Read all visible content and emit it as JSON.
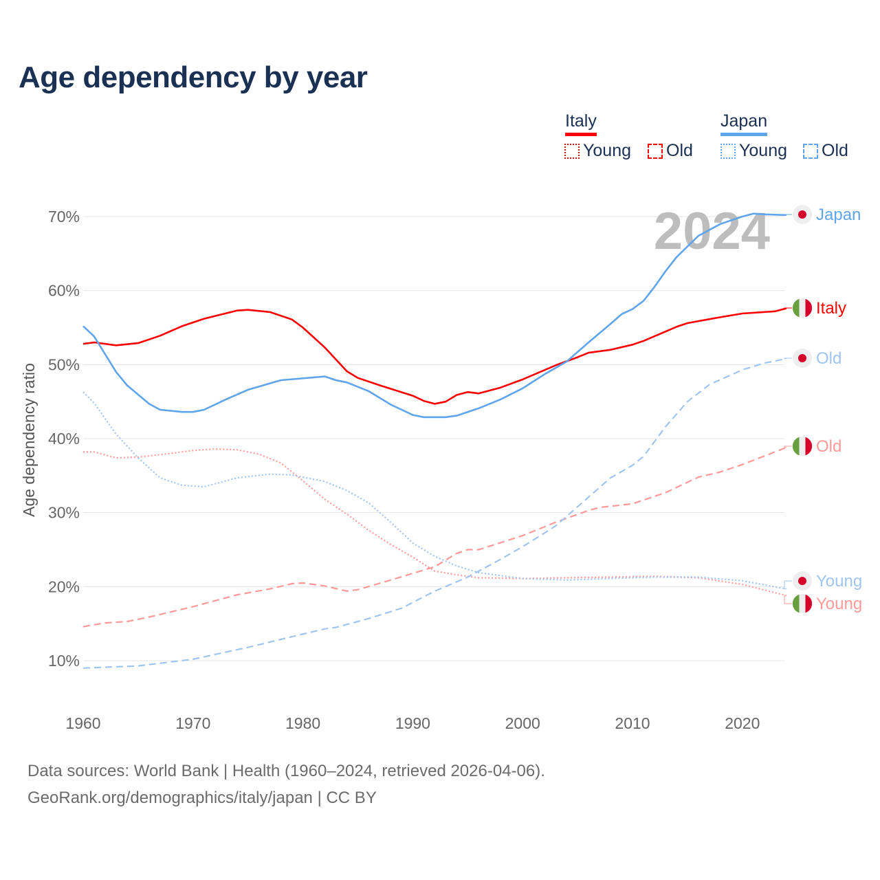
{
  "title": "Age dependency by year",
  "legend": {
    "italy": {
      "label": "Italy",
      "color": "#ff0000",
      "young_color": "#ff9999",
      "young": "Young",
      "old": "Old"
    },
    "japan": {
      "label": "Japan",
      "color": "#5fa5eb",
      "young_color": "#9fc5f0",
      "young": "Young",
      "old": "Old"
    }
  },
  "footer": {
    "line1": "Data sources: World Bank | Health (1960–2024, retrieved 2026-04-06).",
    "line2": "GeoRank.org/demographics/italy/japan | CC BY"
  },
  "chart_data": {
    "type": "line",
    "title": "Age dependency by year",
    "xlabel": "",
    "ylabel": "Age dependency ratio",
    "xlim": [
      1960,
      2024
    ],
    "ylim": [
      10,
      70
    ],
    "x_ticks": [
      "1960",
      "1970",
      "1980",
      "1990",
      "2000",
      "2010",
      "2020"
    ],
    "y_ticks": [
      "10%",
      "20%",
      "30%",
      "40%",
      "50%",
      "60%",
      "70%"
    ],
    "year_watermark": "2024",
    "grid": true,
    "legend_position": "top-right",
    "series": [
      {
        "name": "Italy",
        "label": "Italy",
        "style": "solid",
        "color": "#ff0000",
        "points": [
          [
            1960,
            52.8
          ],
          [
            1961,
            53.0
          ],
          [
            1963,
            52.6
          ],
          [
            1965,
            52.9
          ],
          [
            1967,
            53.9
          ],
          [
            1969,
            55.2
          ],
          [
            1971,
            56.2
          ],
          [
            1974,
            57.3
          ],
          [
            1975,
            57.4
          ],
          [
            1977,
            57.1
          ],
          [
            1979,
            56.1
          ],
          [
            1980,
            55.0
          ],
          [
            1982,
            52.3
          ],
          [
            1984,
            49.1
          ],
          [
            1985,
            48.2
          ],
          [
            1987,
            47.2
          ],
          [
            1990,
            45.8
          ],
          [
            1991,
            45.1
          ],
          [
            1992,
            44.7
          ],
          [
            1993,
            45.0
          ],
          [
            1994,
            45.9
          ],
          [
            1995,
            46.3
          ],
          [
            1996,
            46.1
          ],
          [
            1998,
            46.9
          ],
          [
            2000,
            48.0
          ],
          [
            2003,
            49.9
          ],
          [
            2005,
            51.0
          ],
          [
            2006,
            51.6
          ],
          [
            2008,
            52.0
          ],
          [
            2010,
            52.7
          ],
          [
            2011,
            53.2
          ],
          [
            2014,
            55.1
          ],
          [
            2015,
            55.6
          ],
          [
            2018,
            56.4
          ],
          [
            2020,
            56.9
          ],
          [
            2023,
            57.2
          ],
          [
            2024,
            57.6
          ]
        ]
      },
      {
        "name": "Japan",
        "label": "Japan",
        "style": "solid",
        "color": "#5fa5eb",
        "points": [
          [
            1960,
            55.2
          ],
          [
            1961,
            53.8
          ],
          [
            1963,
            49.0
          ],
          [
            1964,
            47.2
          ],
          [
            1966,
            44.7
          ],
          [
            1967,
            43.9
          ],
          [
            1969,
            43.6
          ],
          [
            1970,
            43.6
          ],
          [
            1971,
            43.9
          ],
          [
            1973,
            45.3
          ],
          [
            1975,
            46.6
          ],
          [
            1978,
            47.9
          ],
          [
            1982,
            48.4
          ],
          [
            1983,
            47.9
          ],
          [
            1984,
            47.6
          ],
          [
            1986,
            46.4
          ],
          [
            1988,
            44.6
          ],
          [
            1990,
            43.2
          ],
          [
            1991,
            42.9
          ],
          [
            1993,
            42.9
          ],
          [
            1994,
            43.1
          ],
          [
            1996,
            44.1
          ],
          [
            1998,
            45.3
          ],
          [
            2000,
            46.8
          ],
          [
            2002,
            48.7
          ],
          [
            2004,
            50.4
          ],
          [
            2006,
            53.0
          ],
          [
            2008,
            55.5
          ],
          [
            2009,
            56.8
          ],
          [
            2010,
            57.5
          ],
          [
            2011,
            58.6
          ],
          [
            2012,
            60.5
          ],
          [
            2013,
            62.6
          ],
          [
            2014,
            64.5
          ],
          [
            2016,
            67.4
          ],
          [
            2018,
            69.0
          ],
          [
            2020,
            70.0
          ],
          [
            2021,
            70.4
          ],
          [
            2022,
            70.3
          ],
          [
            2024,
            70.2
          ]
        ]
      },
      {
        "name": "Italy Young",
        "label": "Young",
        "style": "dotted",
        "color": "#ff9999",
        "points": [
          [
            1960,
            38.2
          ],
          [
            1961,
            38.2
          ],
          [
            1963,
            37.4
          ],
          [
            1965,
            37.5
          ],
          [
            1968,
            38.0
          ],
          [
            1970,
            38.4
          ],
          [
            1972,
            38.6
          ],
          [
            1974,
            38.5
          ],
          [
            1976,
            37.9
          ],
          [
            1978,
            36.7
          ],
          [
            1980,
            34.3
          ],
          [
            1982,
            31.8
          ],
          [
            1984,
            29.8
          ],
          [
            1986,
            27.6
          ],
          [
            1988,
            25.7
          ],
          [
            1990,
            24.0
          ],
          [
            1992,
            22.1
          ],
          [
            1994,
            21.6
          ],
          [
            1996,
            21.2
          ],
          [
            2000,
            21.1
          ],
          [
            2004,
            21.2
          ],
          [
            2008,
            21.3
          ],
          [
            2012,
            21.4
          ],
          [
            2016,
            21.2
          ],
          [
            2020,
            20.3
          ],
          [
            2024,
            18.8
          ]
        ]
      },
      {
        "name": "Italy Old",
        "label": "Old",
        "style": "dashed",
        "color": "#ff9999",
        "points": [
          [
            1960,
            14.6
          ],
          [
            1962,
            15.1
          ],
          [
            1964,
            15.3
          ],
          [
            1966,
            15.9
          ],
          [
            1968,
            16.6
          ],
          [
            1970,
            17.3
          ],
          [
            1974,
            18.9
          ],
          [
            1977,
            19.7
          ],
          [
            1979,
            20.4
          ],
          [
            1980,
            20.5
          ],
          [
            1982,
            20.1
          ],
          [
            1984,
            19.4
          ],
          [
            1985,
            19.6
          ],
          [
            1988,
            20.9
          ],
          [
            1990,
            21.8
          ],
          [
            1992,
            22.7
          ],
          [
            1994,
            24.5
          ],
          [
            1995,
            25.0
          ],
          [
            1996,
            25.0
          ],
          [
            2000,
            26.9
          ],
          [
            2003,
            28.7
          ],
          [
            2006,
            30.3
          ],
          [
            2007,
            30.7
          ],
          [
            2010,
            31.2
          ],
          [
            2013,
            32.7
          ],
          [
            2016,
            34.8
          ],
          [
            2018,
            35.5
          ],
          [
            2020,
            36.5
          ],
          [
            2024,
            38.8
          ]
        ]
      },
      {
        "name": "Japan Young",
        "label": "Young",
        "style": "dotted",
        "color": "#9fc5f0",
        "points": [
          [
            1960,
            46.3
          ],
          [
            1961,
            44.8
          ],
          [
            1963,
            40.6
          ],
          [
            1965,
            37.4
          ],
          [
            1967,
            34.7
          ],
          [
            1969,
            33.7
          ],
          [
            1971,
            33.5
          ],
          [
            1974,
            34.7
          ],
          [
            1977,
            35.2
          ],
          [
            1979,
            35.1
          ],
          [
            1982,
            34.2
          ],
          [
            1984,
            33.0
          ],
          [
            1986,
            31.3
          ],
          [
            1988,
            28.7
          ],
          [
            1990,
            25.9
          ],
          [
            1992,
            24.1
          ],
          [
            1994,
            22.8
          ],
          [
            1996,
            21.9
          ],
          [
            2000,
            21.1
          ],
          [
            2004,
            20.9
          ],
          [
            2008,
            21.1
          ],
          [
            2012,
            21.3
          ],
          [
            2016,
            21.3
          ],
          [
            2020,
            20.8
          ],
          [
            2024,
            19.7
          ]
        ]
      },
      {
        "name": "Japan Old",
        "label": "Old",
        "style": "dashed",
        "color": "#9fc5f0",
        "points": [
          [
            1960,
            9.0
          ],
          [
            1965,
            9.3
          ],
          [
            1970,
            10.2
          ],
          [
            1975,
            11.8
          ],
          [
            1980,
            13.6
          ],
          [
            1982,
            14.3
          ],
          [
            1983,
            14.5
          ],
          [
            1986,
            15.7
          ],
          [
            1989,
            17.1
          ],
          [
            1992,
            19.4
          ],
          [
            1995,
            21.3
          ],
          [
            1998,
            23.7
          ],
          [
            2000,
            25.4
          ],
          [
            2003,
            28.2
          ],
          [
            2005,
            30.8
          ],
          [
            2008,
            34.7
          ],
          [
            2010,
            36.4
          ],
          [
            2011,
            37.6
          ],
          [
            2013,
            41.6
          ],
          [
            2015,
            45.0
          ],
          [
            2017,
            47.3
          ],
          [
            2020,
            49.3
          ],
          [
            2022,
            50.2
          ],
          [
            2024,
            50.8
          ]
        ]
      }
    ]
  }
}
